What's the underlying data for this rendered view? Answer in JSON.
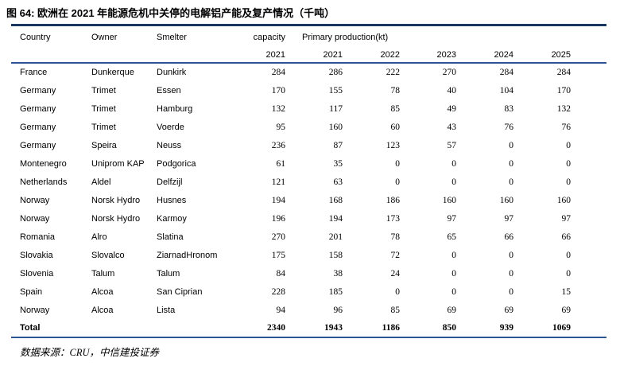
{
  "page": {
    "title": "图 64: 欧洲在 2021 年能源危机中关停的电解铝产能及复产情况（千吨）",
    "source_note": "数据来源：CRU，中信建投证券"
  },
  "colors": {
    "title_rule": "#17375E",
    "table_rule": "#2F5496",
    "text": "#000000",
    "background": "#FFFFFF"
  },
  "table": {
    "headers": {
      "country": "Country",
      "owner": "Owner",
      "smelter": "Smelter",
      "capacity": "capacity",
      "production_group": "Primary production(kt)",
      "capacity_year": "2021",
      "production_years": [
        "2021",
        "2022",
        "2023",
        "2024",
        "2025"
      ]
    },
    "rows": [
      {
        "country": "France",
        "owner": "Dunkerque",
        "smelter": "Dunkirk",
        "capacity_2021": 284,
        "production": [
          286,
          222,
          270,
          284,
          284
        ]
      },
      {
        "country": "Germany",
        "owner": "Trimet",
        "smelter": "Essen",
        "capacity_2021": 170,
        "production": [
          155,
          78,
          40,
          104,
          170
        ]
      },
      {
        "country": "Germany",
        "owner": "Trimet",
        "smelter": "Hamburg",
        "capacity_2021": 132,
        "production": [
          117,
          85,
          49,
          83,
          132
        ]
      },
      {
        "country": "Germany",
        "owner": "Trimet",
        "smelter": "Voerde",
        "capacity_2021": 95,
        "production": [
          160,
          60,
          43,
          76,
          76
        ]
      },
      {
        "country": "Germany",
        "owner": "Speira",
        "smelter": "Neuss",
        "capacity_2021": 236,
        "production": [
          87,
          123,
          57,
          0,
          0
        ]
      },
      {
        "country": "Montenegro",
        "owner": "Uniprom KAP",
        "smelter": "Podgorica",
        "capacity_2021": 61,
        "production": [
          35,
          0,
          0,
          0,
          0
        ]
      },
      {
        "country": "Netherlands",
        "owner": "Aldel",
        "smelter": "Delfzijl",
        "capacity_2021": 121,
        "production": [
          63,
          0,
          0,
          0,
          0
        ]
      },
      {
        "country": "Norway",
        "owner": "Norsk Hydro",
        "smelter": "Husnes",
        "capacity_2021": 194,
        "production": [
          168,
          186,
          160,
          160,
          160
        ]
      },
      {
        "country": "Norway",
        "owner": "Norsk Hydro",
        "smelter": "Karmoy",
        "capacity_2021": 196,
        "production": [
          194,
          173,
          97,
          97,
          97
        ]
      },
      {
        "country": "Romania",
        "owner": "Alro",
        "smelter": "Slatina",
        "capacity_2021": 270,
        "production": [
          201,
          78,
          65,
          66,
          66
        ]
      },
      {
        "country": "Slovakia",
        "owner": "Slovalco",
        "smelter": "ZiarnadHronom",
        "capacity_2021": 175,
        "production": [
          158,
          72,
          0,
          0,
          0
        ]
      },
      {
        "country": "Slovenia",
        "owner": "Talum",
        "smelter": "Talum",
        "capacity_2021": 84,
        "production": [
          38,
          24,
          0,
          0,
          0
        ]
      },
      {
        "country": "Spain",
        "owner": "Alcoa",
        "smelter": "San Ciprian",
        "capacity_2021": 228,
        "production": [
          185,
          0,
          0,
          0,
          15
        ]
      },
      {
        "country": "Norway",
        "owner": "Alcoa",
        "smelter": "Lista",
        "capacity_2021": 94,
        "production": [
          96,
          85,
          69,
          69,
          69
        ]
      }
    ],
    "total": {
      "label": "Total",
      "capacity_2021": 2340,
      "production": [
        1943,
        1186,
        850,
        939,
        1069
      ]
    }
  }
}
